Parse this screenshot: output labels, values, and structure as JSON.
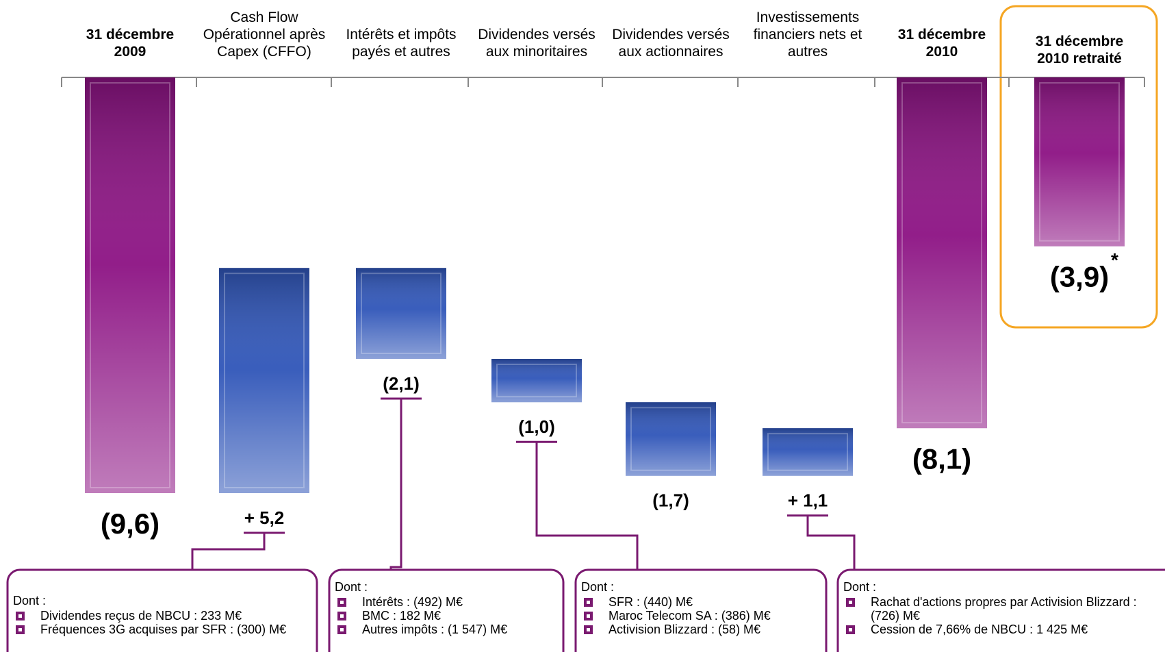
{
  "chart_data": {
    "type": "waterfall",
    "categories": [
      "31 décembre 2009",
      "Cash Flow Opérationnel après Capex (CFFO)",
      "Intérêts et impôts payés et autres",
      "Dividendes versés aux minoritaires",
      "Dividendes versés aux actionnaires",
      "Investissements financiers nets et autres",
      "31 décembre 2010",
      "31 décembre 2010 retraité"
    ],
    "values": [
      -9.6,
      5.2,
      -2.1,
      -1.0,
      -1.7,
      1.1,
      -8.1,
      -3.9
    ],
    "value_labels": [
      "(9,6)",
      "+ 5,2",
      "(2,1)",
      "(1,0)",
      "(1,7)",
      "+ 1,1",
      "(8,1)",
      "(3,9)"
    ],
    "totals": [
      true,
      false,
      false,
      false,
      false,
      false,
      true,
      true
    ],
    "colors": {
      "total": "#8c1283",
      "change": "#2f55b8"
    },
    "footnote_marker": "*",
    "annotations": [
      {
        "title": "Dont :",
        "items": [
          "Dividendes reçus de NBCU : 233 M€",
          "Fréquences 3G acquises par SFR : (300) M€"
        ]
      },
      {
        "title": "Dont :",
        "items": [
          "Intérêts : (492) M€",
          "BMC : 182 M€",
          "Autres impôts : (1 547) M€"
        ]
      },
      {
        "title": "Dont :",
        "items": [
          "SFR : (440) M€",
          "Maroc Telecom SA : (386) M€",
          "Activision Blizzard : (58) M€"
        ]
      },
      {
        "title": "Dont :",
        "items": [
          "Rachat d'actions propres par Activision Blizzard : (726) M€",
          "Cession de 7,66% de NBCU : 1 425 M€"
        ]
      }
    ]
  }
}
